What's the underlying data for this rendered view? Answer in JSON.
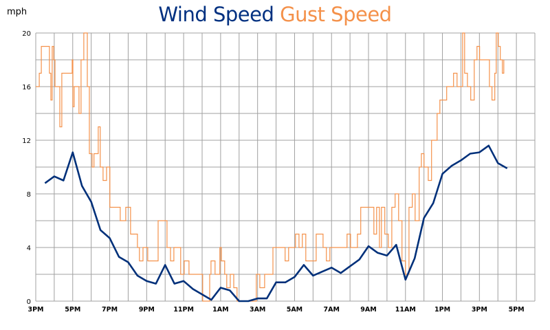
{
  "chart_data": {
    "type": "line",
    "title_parts": [
      "Wind Speed",
      "Gust Speed"
    ],
    "ylabel": "mph",
    "ylim": [
      0,
      20
    ],
    "yticks": [
      "0",
      "4",
      "8",
      "12",
      "16",
      "20"
    ],
    "ygrid_step": 2,
    "x_unit": "hours since 3PM",
    "xlim": [
      0,
      27
    ],
    "xticks": [
      "3PM",
      "5PM",
      "7PM",
      "9PM",
      "11PM",
      "1AM",
      "3AM",
      "5AM",
      "7AM",
      "9AM",
      "11AM",
      "1PM",
      "3PM",
      "5PM"
    ],
    "xgrid_step": 1,
    "colors": {
      "wind": "#00307a",
      "gust": "#f4914a",
      "grid": "#a0a0a0"
    },
    "series": [
      {
        "name": "Wind Speed",
        "x_start": 0.5,
        "x_step": 0.5,
        "values": [
          8.8,
          9.3,
          9.0,
          11.1,
          8.6,
          7.4,
          5.3,
          4.7,
          3.3,
          2.9,
          1.9,
          1.5,
          1.3,
          2.7,
          1.3,
          1.5,
          0.9,
          0.5,
          0.1,
          1.0,
          0.8,
          0.0,
          0.0,
          0.2,
          0.2,
          1.4,
          1.4,
          1.8,
          2.7,
          1.9,
          2.2,
          2.5,
          2.1,
          2.6,
          3.1,
          4.1,
          3.6,
          3.4,
          4.2,
          1.6,
          3.2,
          6.2,
          7.3,
          9.5,
          10.1,
          10.5,
          11.0,
          11.1,
          11.6,
          10.3,
          9.9
        ]
      },
      {
        "name": "Gust Speed",
        "points": [
          [
            0,
            16
          ],
          [
            0.19,
            17
          ],
          [
            0.3,
            19
          ],
          [
            0.67,
            19
          ],
          [
            0.74,
            17
          ],
          [
            0.82,
            15
          ],
          [
            0.89,
            19
          ],
          [
            0.97,
            18
          ],
          [
            1.04,
            16
          ],
          [
            1.3,
            13
          ],
          [
            1.41,
            17
          ],
          [
            1.97,
            18
          ],
          [
            2.01,
            14.5
          ],
          [
            2.08,
            16
          ],
          [
            2.27,
            16
          ],
          [
            2.34,
            14
          ],
          [
            2.45,
            18
          ],
          [
            2.6,
            20
          ],
          [
            2.68,
            20
          ],
          [
            2.79,
            16
          ],
          [
            2.9,
            11
          ],
          [
            3.05,
            10
          ],
          [
            3.15,
            11
          ],
          [
            3.38,
            13
          ],
          [
            3.49,
            10
          ],
          [
            3.64,
            9
          ],
          [
            3.83,
            10
          ],
          [
            4.01,
            7
          ],
          [
            4.46,
            7
          ],
          [
            4.57,
            6
          ],
          [
            4.87,
            7
          ],
          [
            5.13,
            5
          ],
          [
            5.5,
            4
          ],
          [
            5.61,
            3
          ],
          [
            5.8,
            4
          ],
          [
            6.06,
            3
          ],
          [
            6.43,
            3
          ],
          [
            6.62,
            6
          ],
          [
            6.91,
            6
          ],
          [
            7.1,
            4
          ],
          [
            7.29,
            3
          ],
          [
            7.47,
            4
          ],
          [
            7.73,
            4
          ],
          [
            7.84,
            2
          ],
          [
            8.03,
            3
          ],
          [
            8.29,
            2
          ],
          [
            8.92,
            2
          ],
          [
            9.03,
            0
          ],
          [
            9.22,
            0
          ],
          [
            9.41,
            2
          ],
          [
            9.48,
            3
          ],
          [
            9.7,
            2
          ],
          [
            9.96,
            4
          ],
          [
            10.04,
            3
          ],
          [
            10.22,
            2
          ],
          [
            10.33,
            1
          ],
          [
            10.52,
            2
          ],
          [
            10.71,
            1
          ],
          [
            10.89,
            0
          ],
          [
            11.82,
            0
          ],
          [
            11.93,
            2
          ],
          [
            12.12,
            1
          ],
          [
            12.38,
            2
          ],
          [
            12.75,
            2
          ],
          [
            12.83,
            4
          ],
          [
            13.31,
            4
          ],
          [
            13.49,
            3
          ],
          [
            13.68,
            4
          ],
          [
            14.05,
            5
          ],
          [
            14.24,
            4
          ],
          [
            14.42,
            5
          ],
          [
            14.61,
            3
          ],
          [
            14.8,
            3
          ],
          [
            15.17,
            5
          ],
          [
            15.54,
            4
          ],
          [
            15.72,
            3
          ],
          [
            15.91,
            4
          ],
          [
            16.65,
            4
          ],
          [
            16.84,
            5
          ],
          [
            17.03,
            4
          ],
          [
            17.4,
            5
          ],
          [
            17.58,
            7
          ],
          [
            18.14,
            7
          ],
          [
            18.29,
            5
          ],
          [
            18.44,
            7
          ],
          [
            18.59,
            4
          ],
          [
            18.7,
            7
          ],
          [
            18.88,
            5
          ],
          [
            19.07,
            4
          ],
          [
            19.26,
            7
          ],
          [
            19.44,
            8
          ],
          [
            19.63,
            6
          ],
          [
            19.81,
            3
          ],
          [
            20.0,
            2
          ],
          [
            20.19,
            7
          ],
          [
            20.37,
            8
          ],
          [
            20.52,
            6
          ],
          [
            20.74,
            10
          ],
          [
            20.86,
            11
          ],
          [
            21.0,
            10
          ],
          [
            21.23,
            9
          ],
          [
            21.41,
            12
          ],
          [
            21.56,
            12
          ],
          [
            21.71,
            14
          ],
          [
            21.86,
            15
          ],
          [
            22.04,
            15
          ],
          [
            22.23,
            16
          ],
          [
            22.45,
            16
          ],
          [
            22.6,
            17
          ],
          [
            22.79,
            16
          ],
          [
            22.97,
            16
          ],
          [
            23.09,
            20
          ],
          [
            23.2,
            17
          ],
          [
            23.35,
            16
          ],
          [
            23.53,
            15
          ],
          [
            23.72,
            18
          ],
          [
            23.87,
            19
          ],
          [
            24.01,
            18
          ],
          [
            24.35,
            18
          ],
          [
            24.54,
            16
          ],
          [
            24.68,
            15
          ],
          [
            24.83,
            17
          ],
          [
            24.91,
            20
          ],
          [
            25.02,
            19
          ],
          [
            25.13,
            18
          ],
          [
            25.24,
            17
          ],
          [
            25.32,
            18
          ]
        ]
      }
    ]
  }
}
